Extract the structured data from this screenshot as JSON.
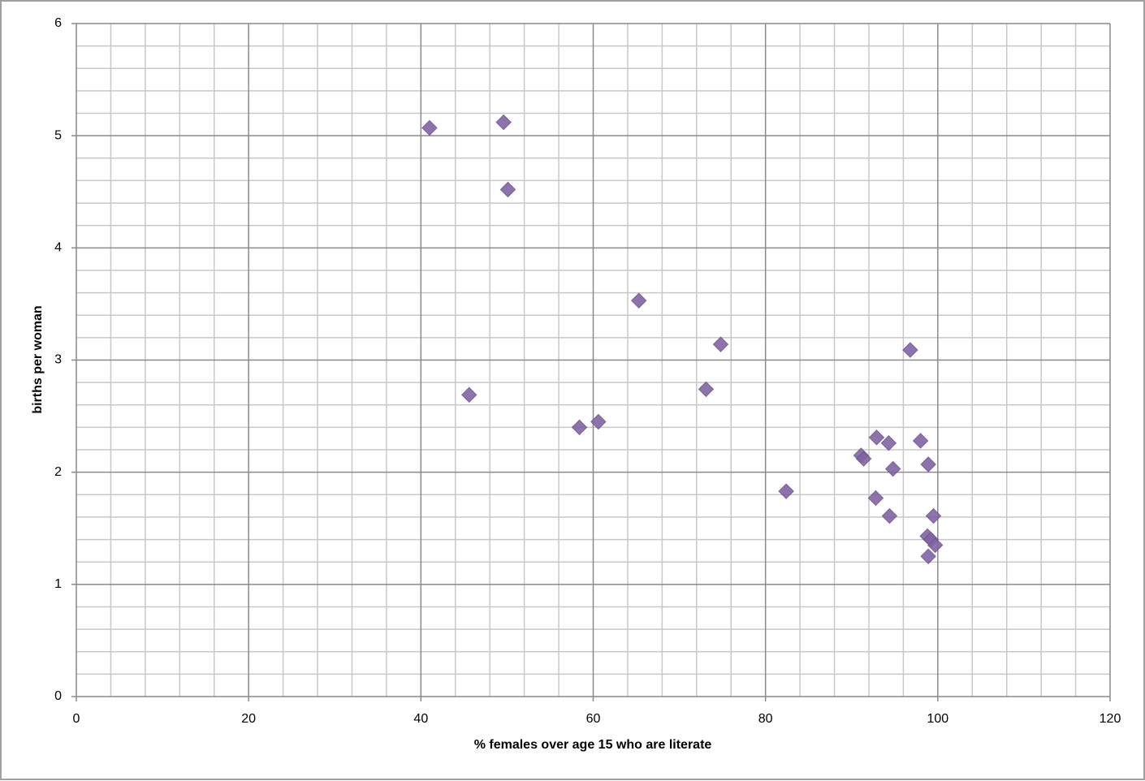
{
  "chart_data": {
    "type": "scatter",
    "x_label": "% females over age 15 who are literate",
    "y_label": "births per woman",
    "color": "#8064a2",
    "grid": true,
    "xlim": [
      0,
      120
    ],
    "xticks": [
      0,
      20,
      40,
      60,
      80,
      100,
      120
    ],
    "ylim": [
      0,
      6
    ],
    "yticks": [
      0,
      1,
      2,
      3,
      4,
      5,
      6
    ],
    "x": [
      41.0,
      49.6,
      50.1,
      65.3,
      74.8,
      96.8,
      45.6,
      73.1,
      58.4,
      60.6,
      82.4,
      92.9,
      94.3,
      98.0,
      91.1,
      91.4,
      94.8,
      98.9,
      92.8,
      94.4,
      99.5,
      98.8,
      99.2,
      99.7,
      98.9
    ],
    "values": [
      5.07,
      5.12,
      4.52,
      3.53,
      3.14,
      3.09,
      2.69,
      2.74,
      2.4,
      2.45,
      1.83,
      2.31,
      2.26,
      2.28,
      2.15,
      2.12,
      2.03,
      2.07,
      1.77,
      1.61,
      1.61,
      1.43,
      1.4,
      1.35,
      1.25
    ]
  }
}
